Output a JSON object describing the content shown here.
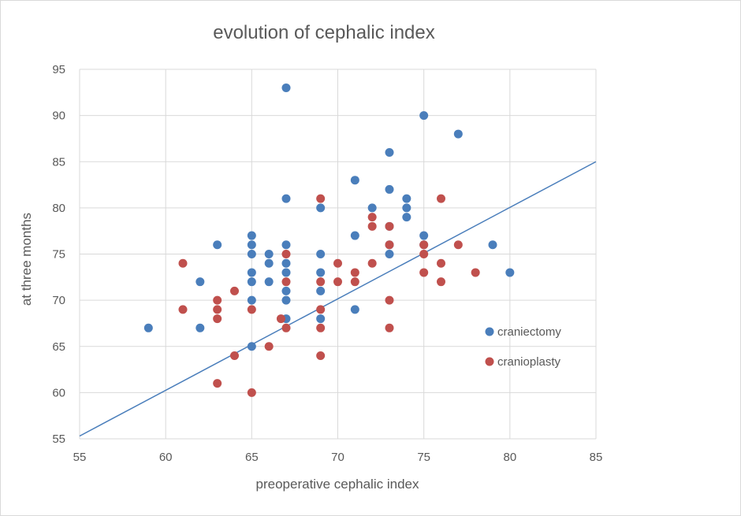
{
  "chart_data": {
    "type": "scatter",
    "title": "evolution of cephalic index",
    "xlabel": "preoperative cephalic index",
    "ylabel": "at three months",
    "xlim": [
      55,
      85
    ],
    "ylim": [
      55,
      95
    ],
    "xticks": [
      55,
      60,
      65,
      70,
      75,
      80,
      85
    ],
    "yticks": [
      55,
      60,
      65,
      70,
      75,
      80,
      85,
      90,
      95
    ],
    "grid": true,
    "legend_position": "right",
    "reference_line": {
      "x": [
        55,
        85
      ],
      "y": [
        55.3,
        85
      ]
    },
    "series": [
      {
        "name": "craniectomy",
        "color": "#4a7ebb",
        "points": [
          [
            59,
            67
          ],
          [
            62,
            67
          ],
          [
            62,
            72
          ],
          [
            63,
            76
          ],
          [
            65,
            77
          ],
          [
            65,
            76
          ],
          [
            65,
            75
          ],
          [
            65,
            73
          ],
          [
            65,
            72
          ],
          [
            65,
            70
          ],
          [
            65,
            65
          ],
          [
            66,
            75
          ],
          [
            66,
            74
          ],
          [
            66,
            72
          ],
          [
            67,
            93
          ],
          [
            67,
            81
          ],
          [
            67,
            76
          ],
          [
            67,
            74
          ],
          [
            67,
            73
          ],
          [
            67,
            71
          ],
          [
            67,
            70
          ],
          [
            67,
            68
          ],
          [
            69,
            80
          ],
          [
            69,
            75
          ],
          [
            69,
            73
          ],
          [
            69,
            71
          ],
          [
            69,
            68
          ],
          [
            71,
            83
          ],
          [
            71,
            77
          ],
          [
            71,
            69
          ],
          [
            72,
            80
          ],
          [
            73,
            86
          ],
          [
            73,
            82
          ],
          [
            73,
            78
          ],
          [
            73,
            76
          ],
          [
            73,
            75
          ],
          [
            74,
            81
          ],
          [
            74,
            80
          ],
          [
            74,
            79
          ],
          [
            75,
            90
          ],
          [
            75,
            77
          ],
          [
            75,
            76
          ],
          [
            77,
            88
          ],
          [
            79,
            76
          ],
          [
            80,
            73
          ]
        ]
      },
      {
        "name": "cranioplasty",
        "color": "#c0504d",
        "points": [
          [
            61,
            74
          ],
          [
            61,
            69
          ],
          [
            63,
            70
          ],
          [
            63,
            69
          ],
          [
            63,
            68
          ],
          [
            63,
            61
          ],
          [
            64,
            71
          ],
          [
            64,
            64
          ],
          [
            65,
            69
          ],
          [
            65,
            60
          ],
          [
            66,
            65
          ],
          [
            66.7,
            68
          ],
          [
            67,
            75
          ],
          [
            67,
            72
          ],
          [
            67,
            67
          ],
          [
            69,
            81
          ],
          [
            69,
            72
          ],
          [
            69,
            69
          ],
          [
            69,
            67
          ],
          [
            69,
            64
          ],
          [
            70,
            74
          ],
          [
            70,
            72
          ],
          [
            71,
            73
          ],
          [
            71,
            72
          ],
          [
            72,
            79
          ],
          [
            72,
            78
          ],
          [
            72,
            74
          ],
          [
            73,
            78
          ],
          [
            73,
            76
          ],
          [
            73,
            70
          ],
          [
            73,
            67
          ],
          [
            75,
            76
          ],
          [
            75,
            75
          ],
          [
            75,
            73
          ],
          [
            76,
            81
          ],
          [
            76,
            74
          ],
          [
            76,
            72
          ],
          [
            77,
            76
          ],
          [
            78,
            73
          ]
        ]
      }
    ]
  }
}
